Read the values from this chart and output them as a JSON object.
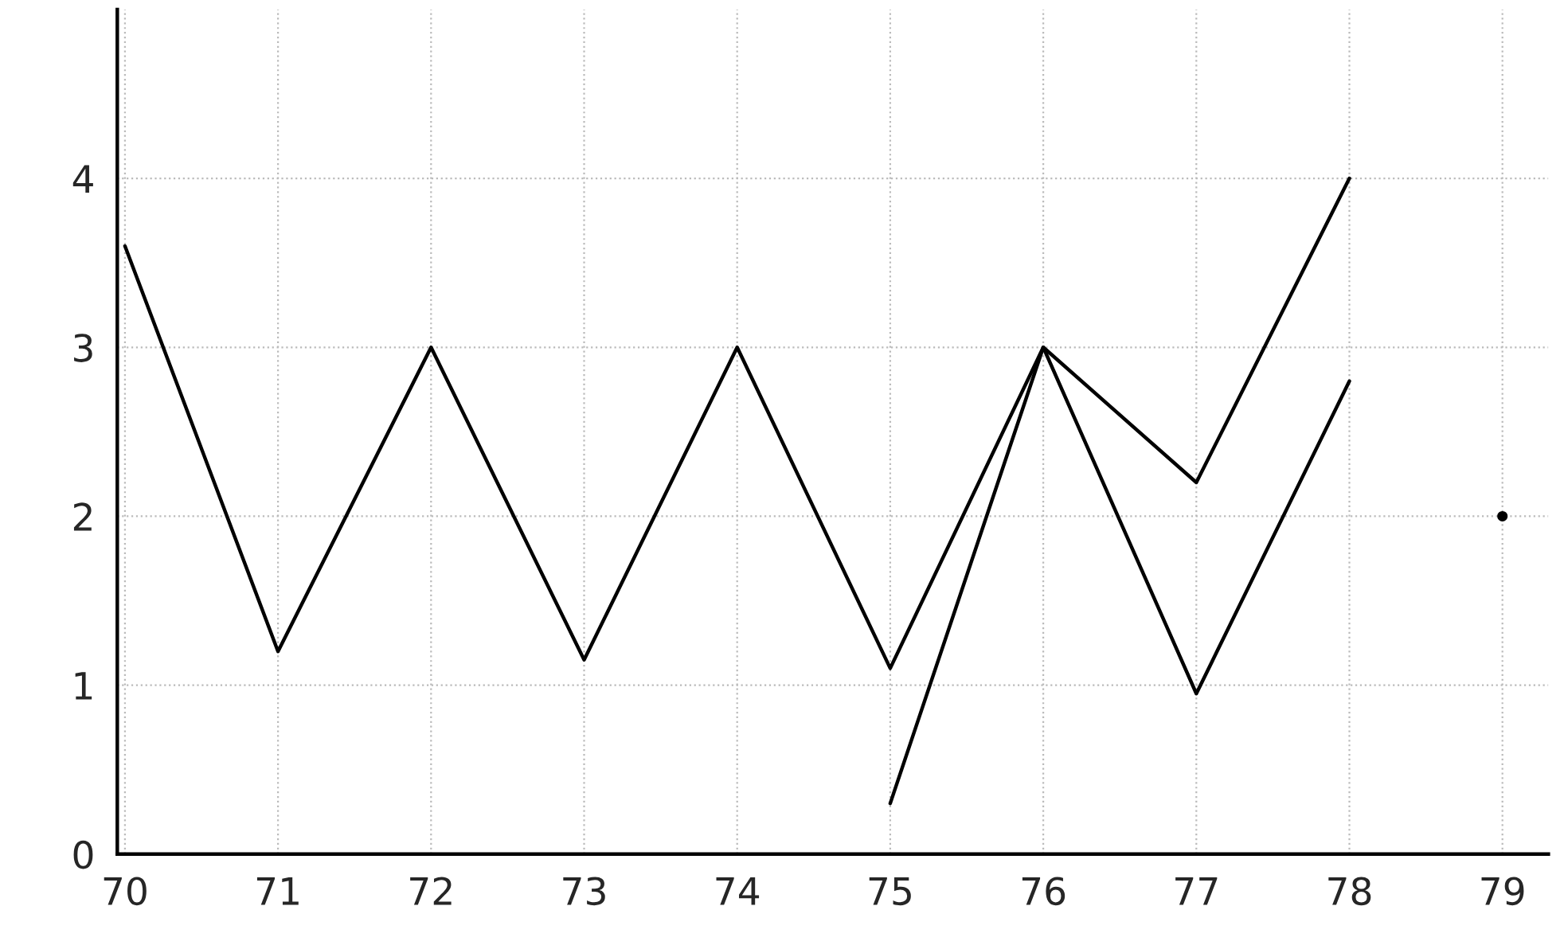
{
  "chart_data": {
    "type": "line",
    "x": [
      70,
      71,
      72,
      73,
      74,
      75,
      76,
      77,
      78
    ],
    "series": [
      {
        "color": "#000000",
        "values": [
          3.6,
          1.2,
          3.0,
          1.15,
          3.0,
          1.1,
          3.0,
          0.95,
          2.8
        ]
      },
      {
        "color": "#000000",
        "x": [
          75,
          76,
          77,
          78
        ],
        "values": [
          0.3,
          3.0,
          2.2,
          4.0
        ]
      },
      {
        "type": "scatter",
        "marker": "circle",
        "color": "#000000",
        "x": [
          79
        ],
        "values": [
          2.0
        ]
      }
    ],
    "xlim": [
      69.95,
      79.3
    ],
    "ylim": [
      0,
      5
    ],
    "xticks": [
      70,
      71,
      72,
      73,
      74,
      75,
      76,
      77,
      78,
      79
    ],
    "yticks": [
      0,
      1,
      2,
      3,
      4
    ],
    "grid": true,
    "marker": "none",
    "line_style": "solid"
  }
}
